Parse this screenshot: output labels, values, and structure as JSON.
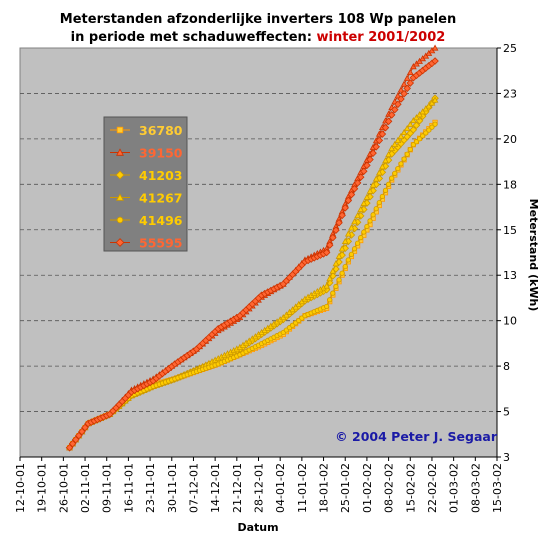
{
  "chart_data": {
    "type": "line",
    "title_line1": "Meterstanden afzonderlijke inverters 108 Wp panelen",
    "title_line2_prefix": "in periode met schaduweffecten: ",
    "title_line2_highlight": "winter 2001/2002",
    "xlabel": "Datum",
    "ylabel": "Meterstand (kWh)",
    "ylim": [
      3,
      25
    ],
    "x_ticks": [
      "12-10-01",
      "19-10-01",
      "26-10-01",
      "02-11-01",
      "09-11-01",
      "16-11-01",
      "23-11-01",
      "30-11-01",
      "07-12-01",
      "14-12-01",
      "21-12-01",
      "28-12-01",
      "04-01-02",
      "11-01-02",
      "18-01-02",
      "25-01-02",
      "01-02-02",
      "08-02-02",
      "15-02-02",
      "22-02-02",
      "01-03-02",
      "08-03-02",
      "15-03-02"
    ],
    "y_ticks": [
      "3",
      "5",
      "8",
      "10",
      "13",
      "15",
      "18",
      "20",
      "23",
      "25"
    ],
    "grid": "horizontal dashed",
    "legend_placement": "left",
    "copyright": "© 2004 Peter J. Segaar",
    "series": [
      {
        "name": "36780",
        "color": "#ffcc33",
        "stroke": "#ff9900",
        "marker": "square",
        "points": [
          [
            16,
            3.5
          ],
          [
            22,
            4.8
          ],
          [
            29,
            5.3
          ],
          [
            36,
            6.3
          ],
          [
            43,
            6.9
          ],
          [
            50,
            7.2
          ],
          [
            57,
            7.6
          ],
          [
            64,
            8.0
          ],
          [
            71,
            8.5
          ],
          [
            78,
            9.0
          ],
          [
            85,
            9.6
          ],
          [
            92,
            10.6
          ],
          [
            99,
            11.0
          ],
          [
            106,
            13.5
          ],
          [
            113,
            15.5
          ],
          [
            120,
            17.9
          ],
          [
            127,
            19.8
          ],
          [
            134,
            21.0
          ]
        ]
      },
      {
        "name": "39150",
        "color": "#ff6633",
        "stroke": "#cc3300",
        "marker": "triangle",
        "points": [
          [
            16,
            3.5
          ],
          [
            22,
            4.8
          ],
          [
            29,
            5.3
          ],
          [
            36,
            6.6
          ],
          [
            43,
            7.2
          ],
          [
            50,
            8.0
          ],
          [
            57,
            8.8
          ],
          [
            64,
            9.8
          ],
          [
            71,
            10.5
          ],
          [
            78,
            11.6
          ],
          [
            85,
            12.3
          ],
          [
            92,
            13.6
          ],
          [
            99,
            14.2
          ],
          [
            106,
            17.0
          ],
          [
            113,
            19.3
          ],
          [
            120,
            21.8
          ],
          [
            127,
            24.0
          ],
          [
            134,
            25.0
          ]
        ]
      },
      {
        "name": "41203",
        "color": "#ffcc00",
        "stroke": "#cc9900",
        "marker": "diamond",
        "points": [
          [
            16,
            3.5
          ],
          [
            22,
            4.8
          ],
          [
            29,
            5.3
          ],
          [
            36,
            6.3
          ],
          [
            43,
            6.8
          ],
          [
            50,
            7.2
          ],
          [
            57,
            7.7
          ],
          [
            64,
            8.2
          ],
          [
            71,
            8.8
          ],
          [
            78,
            9.6
          ],
          [
            85,
            10.4
          ],
          [
            92,
            11.4
          ],
          [
            99,
            12.0
          ],
          [
            106,
            14.6
          ],
          [
            113,
            17.0
          ],
          [
            120,
            19.3
          ],
          [
            127,
            20.6
          ],
          [
            134,
            22.3
          ]
        ]
      },
      {
        "name": "41267",
        "color": "#ffcc00",
        "stroke": "#cc9900",
        "marker": "triangle",
        "points": [
          [
            16,
            3.5
          ],
          [
            22,
            4.8
          ],
          [
            29,
            5.3
          ],
          [
            36,
            6.3
          ],
          [
            43,
            6.8
          ],
          [
            50,
            7.2
          ],
          [
            57,
            7.7
          ],
          [
            64,
            8.3
          ],
          [
            71,
            8.9
          ],
          [
            78,
            9.7
          ],
          [
            85,
            10.5
          ],
          [
            92,
            11.5
          ],
          [
            99,
            12.2
          ],
          [
            106,
            15.0
          ],
          [
            113,
            17.3
          ],
          [
            120,
            19.6
          ],
          [
            127,
            21.1
          ],
          [
            134,
            22.2
          ]
        ]
      },
      {
        "name": "41496",
        "color": "#ffcc00",
        "stroke": "#cc9900",
        "marker": "circle",
        "points": [
          [
            16,
            3.5
          ],
          [
            22,
            4.8
          ],
          [
            29,
            5.3
          ],
          [
            36,
            6.3
          ],
          [
            43,
            6.8
          ],
          [
            50,
            7.2
          ],
          [
            57,
            7.6
          ],
          [
            64,
            8.0
          ],
          [
            71,
            8.5
          ],
          [
            78,
            9.1
          ],
          [
            85,
            9.7
          ],
          [
            92,
            10.6
          ],
          [
            99,
            11.1
          ],
          [
            106,
            13.6
          ],
          [
            113,
            15.7
          ],
          [
            120,
            18.0
          ],
          [
            127,
            19.8
          ],
          [
            134,
            20.9
          ]
        ]
      },
      {
        "name": "55595",
        "color": "#ff6633",
        "stroke": "#cc3300",
        "marker": "diamond",
        "points": [
          [
            16,
            3.5
          ],
          [
            22,
            4.8
          ],
          [
            29,
            5.3
          ],
          [
            36,
            6.5
          ],
          [
            43,
            7.1
          ],
          [
            50,
            8.0
          ],
          [
            57,
            8.8
          ],
          [
            64,
            9.9
          ],
          [
            71,
            10.6
          ],
          [
            78,
            11.7
          ],
          [
            85,
            12.3
          ],
          [
            92,
            13.5
          ],
          [
            99,
            14.0
          ],
          [
            106,
            16.8
          ],
          [
            113,
            19.0
          ],
          [
            120,
            21.4
          ],
          [
            127,
            23.4
          ],
          [
            134,
            24.3
          ]
        ]
      }
    ]
  }
}
